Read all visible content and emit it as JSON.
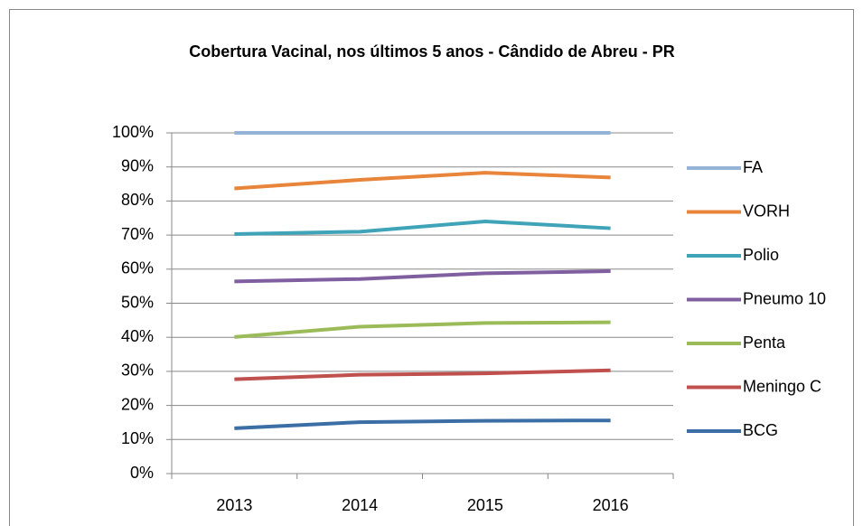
{
  "chart_data": {
    "type": "line",
    "title": "Cobertura Vacinal, nos últimos 5 anos - Cândido de Abreu - PR",
    "categories": [
      "2013",
      "2014",
      "2015",
      "2016"
    ],
    "series": [
      {
        "name": "FA",
        "color": "#95b3d7",
        "values": [
          100,
          100,
          100,
          100
        ]
      },
      {
        "name": "VORH",
        "color": "#e8853a",
        "values": [
          83.7,
          86.2,
          88.3,
          86.9
        ]
      },
      {
        "name": "Polio",
        "color": "#3fa4b8",
        "values": [
          70.3,
          71,
          74,
          72
        ]
      },
      {
        "name": "Pneumo 10",
        "color": "#7f5fa0",
        "values": [
          56.4,
          57.1,
          58.8,
          59.4
        ]
      },
      {
        "name": "Penta",
        "color": "#9bbb59",
        "values": [
          40.1,
          43.1,
          44.2,
          44.4
        ]
      },
      {
        "name": "Meningo C",
        "color": "#c0504d",
        "values": [
          27.7,
          29,
          29.4,
          30.3
        ]
      },
      {
        "name": "BCG",
        "color": "#3b6ea5",
        "values": [
          13.3,
          15.1,
          15.5,
          15.6
        ]
      }
    ],
    "ylim": [
      0,
      100
    ],
    "yticks": [
      {
        "value": 0,
        "label": "0%"
      },
      {
        "value": 10,
        "label": "10%"
      },
      {
        "value": 20,
        "label": "20%"
      },
      {
        "value": 30,
        "label": "30%"
      },
      {
        "value": 40,
        "label": "40%"
      },
      {
        "value": 50,
        "label": "50%"
      },
      {
        "value": 60,
        "label": "60%"
      },
      {
        "value": 70,
        "label": "70%"
      },
      {
        "value": 80,
        "label": "80%"
      },
      {
        "value": 90,
        "label": "90%"
      },
      {
        "value": 100,
        "label": "100%"
      }
    ],
    "grid": true,
    "legend": "right"
  }
}
